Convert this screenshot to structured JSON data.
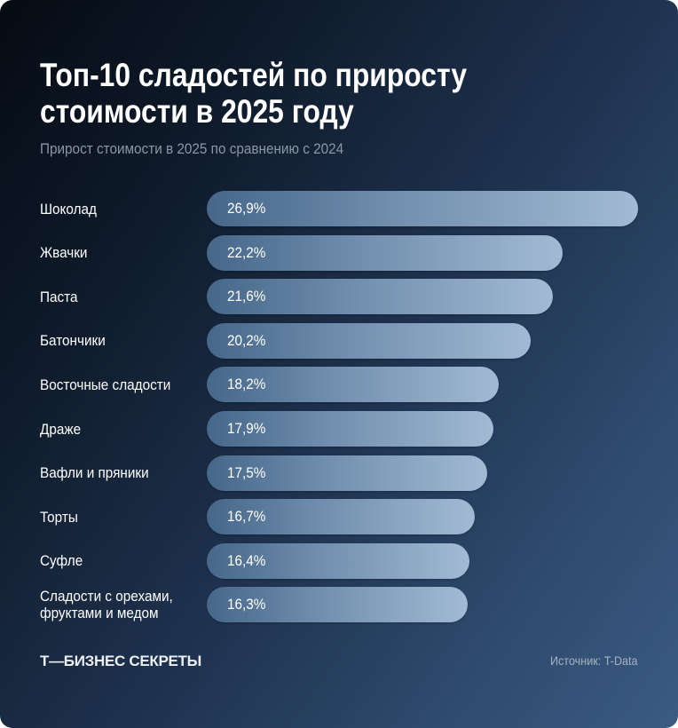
{
  "chart_data": {
    "type": "bar",
    "orientation": "horizontal",
    "title": "Топ-10 сладостей по приросту стоимости в 2025 году",
    "subtitle": "Прирост стоимости в 2025 по сравнению с 2024",
    "categories": [
      "Шоколад",
      "Жвачки",
      "Паста",
      "Батончики",
      "Восточные сладости",
      "Драже",
      "Вафли и пряники",
      "Торты",
      "Суфле",
      "Сладости с орехами,\nфруктами и медом"
    ],
    "values": [
      26.9,
      22.2,
      21.6,
      20.2,
      18.2,
      17.9,
      17.5,
      16.7,
      16.4,
      16.3
    ],
    "data_labels": [
      "26,9%",
      "22,2%",
      "21,6%",
      "20,2%",
      "18,2%",
      "17,9%",
      "17,5%",
      "16,7%",
      "16,4%",
      "16,3%"
    ],
    "unit": "%",
    "xlim": [
      0,
      26.9
    ],
    "grid": false,
    "legend": "none",
    "colors": {
      "bar_start": "#456789",
      "bar_end": "#a2bad4",
      "background_dark": "#050b14",
      "background_light": "#3b5b82"
    }
  },
  "footer": {
    "logo": "Т—БИЗНЕС СЕКРЕТЫ",
    "source": "Источник: T-Data"
  }
}
